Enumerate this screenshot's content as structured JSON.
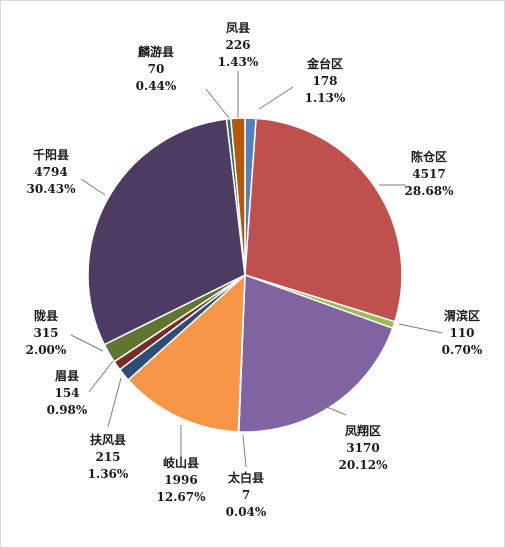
{
  "chart_data": {
    "type": "pie",
    "title": "",
    "slices": [
      {
        "name": "金台区",
        "value": 178,
        "percent": "1.13%",
        "color": "#4f81bd"
      },
      {
        "name": "陈仓区",
        "value": 4517,
        "percent": "28.68%",
        "color": "#c0504d"
      },
      {
        "name": "渭滨区",
        "value": 110,
        "percent": "0.70%",
        "color": "#9bbb59"
      },
      {
        "name": "凤翔区",
        "value": 3170,
        "percent": "20.12%",
        "color": "#8064a2"
      },
      {
        "name": "太白县",
        "value": 7,
        "percent": "0.04%",
        "color": "#4bacc6"
      },
      {
        "name": "岐山县",
        "value": 1996,
        "percent": "12.67%",
        "color": "#f79646"
      },
      {
        "name": "扶风县",
        "value": 215,
        "percent": "1.36%",
        "color": "#2c4d75"
      },
      {
        "name": "眉县",
        "value": 154,
        "percent": "0.98%",
        "color": "#772c2a"
      },
      {
        "name": "陇县",
        "value": 315,
        "percent": "2.00%",
        "color": "#5f7530"
      },
      {
        "name": "千阳县",
        "value": 4794,
        "percent": "30.43%",
        "color": "#4d3b62"
      },
      {
        "name": "麟游县",
        "value": 70,
        "percent": "0.44%",
        "color": "#276a7c"
      },
      {
        "name": "凤县",
        "value": 226,
        "percent": "1.43%",
        "color": "#b65708"
      }
    ]
  }
}
